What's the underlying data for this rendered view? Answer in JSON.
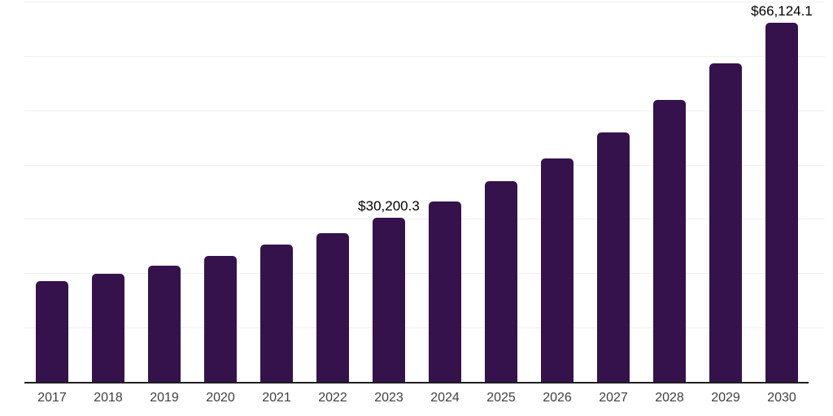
{
  "chart": {
    "bar_color": "#35124B",
    "grid_color": "#f0f0f0",
    "axis_color": "#1f1f1f",
    "data_label_color": "#000000",
    "tick_label_color": "#404040",
    "background_color": "#ffffff"
  },
  "chart_data": {
    "type": "bar",
    "title": "",
    "xlabel": "",
    "ylabel": "",
    "categories": [
      "2017",
      "2018",
      "2019",
      "2020",
      "2021",
      "2022",
      "2023",
      "2024",
      "2025",
      "2026",
      "2027",
      "2028",
      "2029",
      "2030"
    ],
    "values": [
      18600,
      19900,
      21400,
      23200,
      25300,
      27400,
      30200.3,
      33200,
      36900,
      41100,
      46000,
      51900,
      58600,
      66124.1
    ],
    "data_labels": [
      {
        "category": "2023",
        "text": "$30,200.3"
      },
      {
        "category": "2030",
        "text": "$66,124.1"
      }
    ],
    "ylim": [
      0,
      70300
    ],
    "gridline_interval": 10000,
    "gridline_values": [
      10000,
      20000,
      30000,
      40000,
      50000,
      60000,
      70000
    ],
    "grid": true,
    "legend": false,
    "y_axis_tick_labels_visible": false
  }
}
